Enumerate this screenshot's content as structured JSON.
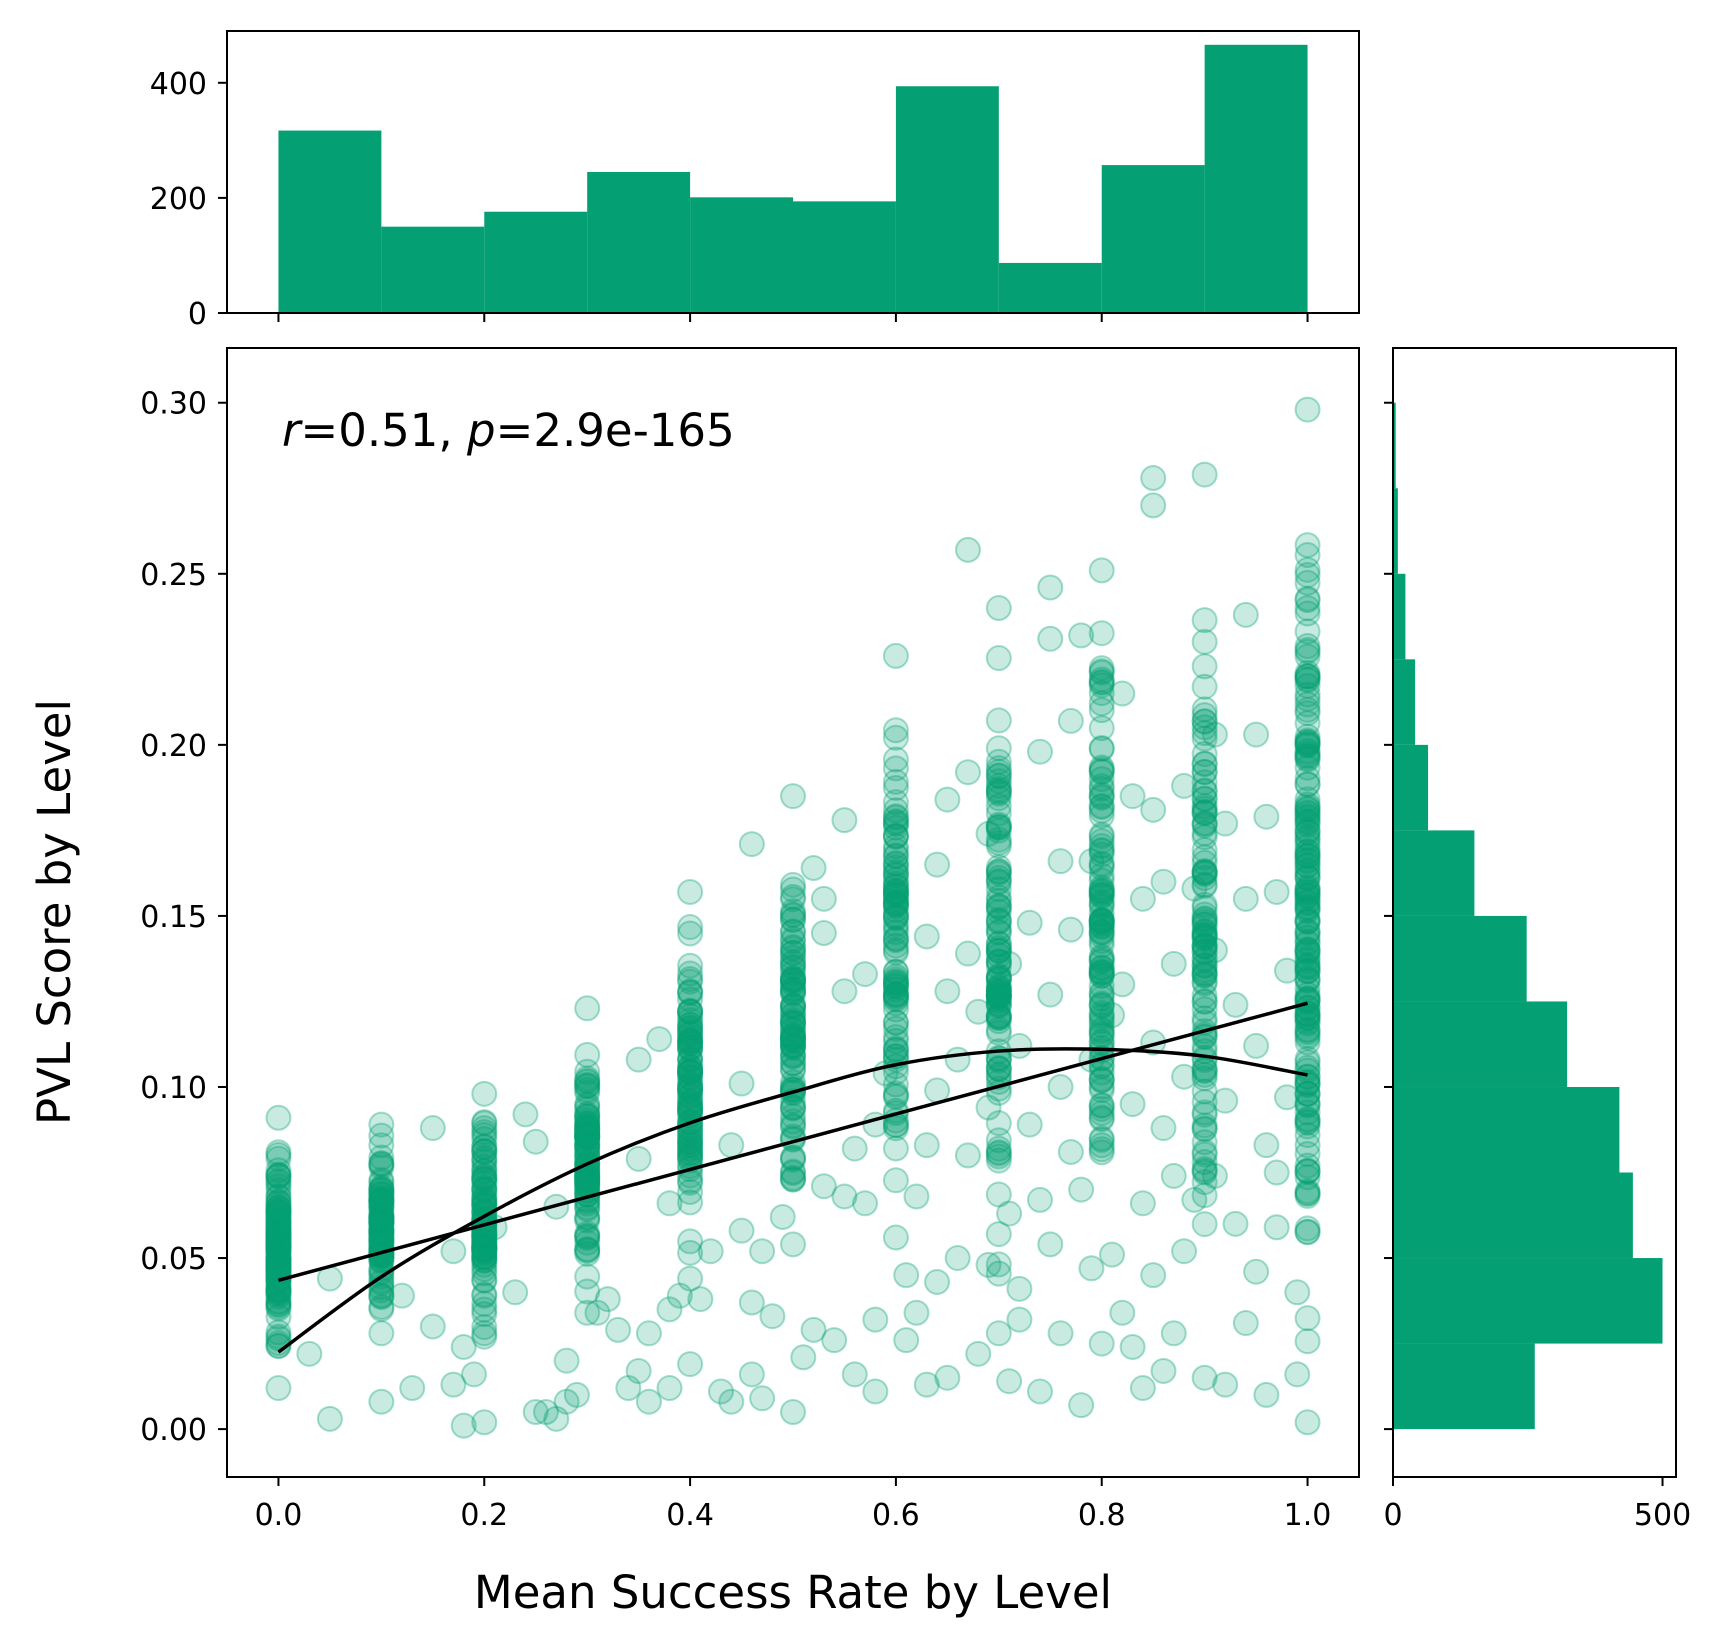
{
  "colors": {
    "accent": "#04a074",
    "line": "#000000",
    "frame": "#000000"
  },
  "chart_data": {
    "type": "scatter",
    "title": "",
    "xlabel": "Mean Success Rate by Level",
    "ylabel": "PVL Score by Level",
    "annotation": {
      "r_symbol": "r",
      "r_text": "=0.51, ",
      "p_symbol": "p",
      "p_text": "=2.9e-165"
    },
    "xlim": [
      -0.05,
      1.05
    ],
    "ylim": [
      -0.014,
      0.316
    ],
    "x_ticks": [
      "0.0",
      "0.2",
      "0.4",
      "0.6",
      "0.8",
      "1.0"
    ],
    "y_ticks": [
      "0.00",
      "0.05",
      "0.10",
      "0.15",
      "0.20",
      "0.25",
      "0.30"
    ],
    "top_histogram": {
      "type": "bar",
      "bin_edges": [
        0.0,
        0.1,
        0.2,
        0.3,
        0.4,
        0.5,
        0.6,
        0.7,
        0.8,
        0.9,
        1.0
      ],
      "counts": [
        317,
        150,
        176,
        245,
        201,
        194,
        394,
        87,
        257,
        466
      ],
      "ylim": [
        0,
        490
      ],
      "y_ticks": [
        "0",
        "200",
        "400"
      ]
    },
    "right_histogram": {
      "type": "bar",
      "orientation": "horizontal",
      "bin_edges": [
        0.0,
        0.025,
        0.05,
        0.075,
        0.1,
        0.125,
        0.15,
        0.175,
        0.2,
        0.225,
        0.25,
        0.275,
        0.3
      ],
      "counts": [
        263,
        500,
        445,
        420,
        323,
        248,
        151,
        65,
        41,
        23,
        9,
        5
      ],
      "xlim": [
        0,
        525
      ],
      "x_ticks": [
        "0",
        "500"
      ]
    },
    "linear_fit": {
      "x": [
        0.0,
        1.0
      ],
      "y": [
        0.0435,
        0.1245
      ]
    },
    "quadratic_fit": {
      "x": [
        0.0,
        0.1,
        0.2,
        0.3,
        0.4,
        0.5,
        0.6,
        0.7,
        0.8,
        0.9,
        1.0
      ],
      "y": [
        0.0225,
        0.0445,
        0.0622,
        0.0775,
        0.0895,
        0.0985,
        0.1065,
        0.1105,
        0.111,
        0.109,
        0.1035
      ]
    },
    "scatter": {
      "marker_alpha": 0.22,
      "columns": [
        {
          "x": 0.0,
          "y_min": 0.012,
          "y_max": 0.091,
          "n": 120
        },
        {
          "x": 0.1,
          "y_min": 0.028,
          "y_max": 0.089,
          "n": 90
        },
        {
          "x": 0.2,
          "y_min": 0.028,
          "y_max": 0.098,
          "n": 95
        },
        {
          "x": 0.3,
          "y_min": 0.034,
          "y_max": 0.123,
          "n": 95
        },
        {
          "x": 0.4,
          "y_min": 0.044,
          "y_max": 0.157,
          "n": 100
        },
        {
          "x": 0.5,
          "y_min": 0.054,
          "y_max": 0.185,
          "n": 95
        },
        {
          "x": 0.6,
          "y_min": 0.056,
          "y_max": 0.226,
          "n": 100
        },
        {
          "x": 0.7,
          "y_min": 0.028,
          "y_max": 0.24,
          "n": 110
        },
        {
          "x": 0.8,
          "y_min": 0.025,
          "y_max": 0.251,
          "n": 120
        },
        {
          "x": 0.9,
          "y_min": 0.015,
          "y_max": 0.279,
          "n": 110
        },
        {
          "x": 1.0,
          "y_min": 0.002,
          "y_max": 0.298,
          "n": 180
        }
      ],
      "scattered_points": [
        [
          0.05,
          0.003
        ],
        [
          0.03,
          0.022
        ],
        [
          0.05,
          0.044
        ],
        [
          0.1,
          0.008
        ],
        [
          0.12,
          0.039
        ],
        [
          0.13,
          0.012
        ],
        [
          0.15,
          0.088
        ],
        [
          0.15,
          0.03
        ],
        [
          0.17,
          0.013
        ],
        [
          0.17,
          0.052
        ],
        [
          0.18,
          0.024
        ],
        [
          0.18,
          0.001
        ],
        [
          0.19,
          0.016
        ],
        [
          0.2,
          0.002
        ],
        [
          0.2,
          0.027
        ],
        [
          0.21,
          0.059
        ],
        [
          0.23,
          0.04
        ],
        [
          0.24,
          0.092
        ],
        [
          0.25,
          0.084
        ],
        [
          0.25,
          0.005
        ],
        [
          0.26,
          0.005
        ],
        [
          0.27,
          0.003
        ],
        [
          0.27,
          0.065
        ],
        [
          0.28,
          0.02
        ],
        [
          0.28,
          0.008
        ],
        [
          0.29,
          0.01
        ],
        [
          0.31,
          0.034
        ],
        [
          0.32,
          0.038
        ],
        [
          0.33,
          0.029
        ],
        [
          0.34,
          0.012
        ],
        [
          0.35,
          0.108
        ],
        [
          0.35,
          0.017
        ],
        [
          0.35,
          0.079
        ],
        [
          0.36,
          0.008
        ],
        [
          0.36,
          0.028
        ],
        [
          0.37,
          0.114
        ],
        [
          0.38,
          0.035
        ],
        [
          0.38,
          0.012
        ],
        [
          0.38,
          0.066
        ],
        [
          0.39,
          0.039
        ],
        [
          0.4,
          0.019
        ],
        [
          0.41,
          0.038
        ],
        [
          0.42,
          0.052
        ],
        [
          0.43,
          0.011
        ],
        [
          0.44,
          0.083
        ],
        [
          0.44,
          0.008
        ],
        [
          0.45,
          0.101
        ],
        [
          0.45,
          0.058
        ],
        [
          0.46,
          0.171
        ],
        [
          0.46,
          0.037
        ],
        [
          0.46,
          0.016
        ],
        [
          0.47,
          0.052
        ],
        [
          0.47,
          0.009
        ],
        [
          0.48,
          0.033
        ],
        [
          0.49,
          0.062
        ],
        [
          0.5,
          0.005
        ],
        [
          0.51,
          0.021
        ],
        [
          0.52,
          0.164
        ],
        [
          0.52,
          0.029
        ],
        [
          0.53,
          0.155
        ],
        [
          0.53,
          0.145
        ],
        [
          0.53,
          0.071
        ],
        [
          0.54,
          0.026
        ],
        [
          0.55,
          0.068
        ],
        [
          0.55,
          0.128
        ],
        [
          0.55,
          0.178
        ],
        [
          0.56,
          0.016
        ],
        [
          0.56,
          0.082
        ],
        [
          0.57,
          0.133
        ],
        [
          0.57,
          0.066
        ],
        [
          0.58,
          0.032
        ],
        [
          0.58,
          0.011
        ],
        [
          0.58,
          0.089
        ],
        [
          0.59,
          0.104
        ],
        [
          0.61,
          0.045
        ],
        [
          0.61,
          0.026
        ],
        [
          0.62,
          0.068
        ],
        [
          0.62,
          0.034
        ],
        [
          0.63,
          0.144
        ],
        [
          0.63,
          0.083
        ],
        [
          0.63,
          0.013
        ],
        [
          0.64,
          0.165
        ],
        [
          0.64,
          0.099
        ],
        [
          0.64,
          0.043
        ],
        [
          0.65,
          0.184
        ],
        [
          0.65,
          0.128
        ],
        [
          0.65,
          0.015
        ],
        [
          0.66,
          0.108
        ],
        [
          0.66,
          0.05
        ],
        [
          0.67,
          0.257
        ],
        [
          0.67,
          0.192
        ],
        [
          0.67,
          0.139
        ],
        [
          0.67,
          0.08
        ],
        [
          0.68,
          0.022
        ],
        [
          0.68,
          0.122
        ],
        [
          0.69,
          0.174
        ],
        [
          0.69,
          0.094
        ],
        [
          0.69,
          0.048
        ],
        [
          0.71,
          0.014
        ],
        [
          0.71,
          0.136
        ],
        [
          0.71,
          0.063
        ],
        [
          0.72,
          0.112
        ],
        [
          0.72,
          0.041
        ],
        [
          0.72,
          0.032
        ],
        [
          0.73,
          0.148
        ],
        [
          0.73,
          0.089
        ],
        [
          0.74,
          0.011
        ],
        [
          0.74,
          0.198
        ],
        [
          0.74,
          0.067
        ],
        [
          0.75,
          0.231
        ],
        [
          0.75,
          0.246
        ],
        [
          0.75,
          0.127
        ],
        [
          0.75,
          0.054
        ],
        [
          0.76,
          0.166
        ],
        [
          0.76,
          0.1
        ],
        [
          0.76,
          0.028
        ],
        [
          0.77,
          0.207
        ],
        [
          0.77,
          0.146
        ],
        [
          0.77,
          0.081
        ],
        [
          0.78,
          0.232
        ],
        [
          0.78,
          0.07
        ],
        [
          0.78,
          0.007
        ],
        [
          0.79,
          0.166
        ],
        [
          0.79,
          0.108
        ],
        [
          0.79,
          0.047
        ],
        [
          0.81,
          0.121
        ],
        [
          0.81,
          0.051
        ],
        [
          0.82,
          0.215
        ],
        [
          0.82,
          0.13
        ],
        [
          0.82,
          0.034
        ],
        [
          0.83,
          0.185
        ],
        [
          0.83,
          0.095
        ],
        [
          0.83,
          0.024
        ],
        [
          0.84,
          0.155
        ],
        [
          0.84,
          0.066
        ],
        [
          0.84,
          0.012
        ],
        [
          0.85,
          0.278
        ],
        [
          0.85,
          0.27
        ],
        [
          0.85,
          0.181
        ],
        [
          0.85,
          0.113
        ],
        [
          0.85,
          0.045
        ],
        [
          0.86,
          0.16
        ],
        [
          0.86,
          0.088
        ],
        [
          0.86,
          0.017
        ],
        [
          0.87,
          0.136
        ],
        [
          0.87,
          0.074
        ],
        [
          0.87,
          0.028
        ],
        [
          0.88,
          0.188
        ],
        [
          0.88,
          0.103
        ],
        [
          0.88,
          0.052
        ],
        [
          0.89,
          0.158
        ],
        [
          0.89,
          0.067
        ],
        [
          0.91,
          0.203
        ],
        [
          0.91,
          0.14
        ],
        [
          0.91,
          0.074
        ],
        [
          0.92,
          0.177
        ],
        [
          0.92,
          0.096
        ],
        [
          0.92,
          0.013
        ],
        [
          0.93,
          0.124
        ],
        [
          0.93,
          0.06
        ],
        [
          0.94,
          0.238
        ],
        [
          0.94,
          0.155
        ],
        [
          0.94,
          0.031
        ],
        [
          0.95,
          0.203
        ],
        [
          0.95,
          0.112
        ],
        [
          0.95,
          0.046
        ],
        [
          0.96,
          0.179
        ],
        [
          0.96,
          0.083
        ],
        [
          0.96,
          0.01
        ],
        [
          0.97,
          0.157
        ],
        [
          0.97,
          0.059
        ],
        [
          0.98,
          0.134
        ],
        [
          0.98,
          0.097
        ],
        [
          0.99,
          0.04
        ],
        [
          0.99,
          0.016
        ],
        [
          0.97,
          0.075
        ]
      ]
    }
  }
}
